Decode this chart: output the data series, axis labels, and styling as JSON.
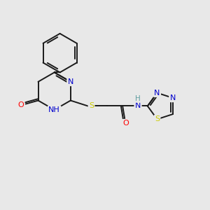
{
  "background_color": "#e8e8e8",
  "bond_color": "#1a1a1a",
  "colors": {
    "N": "#0000cd",
    "O": "#ff0000",
    "S": "#cccc00",
    "C": "#1a1a1a",
    "H_teal": "#5f9ea0"
  },
  "figsize": [
    3.0,
    3.0
  ],
  "dpi": 100
}
